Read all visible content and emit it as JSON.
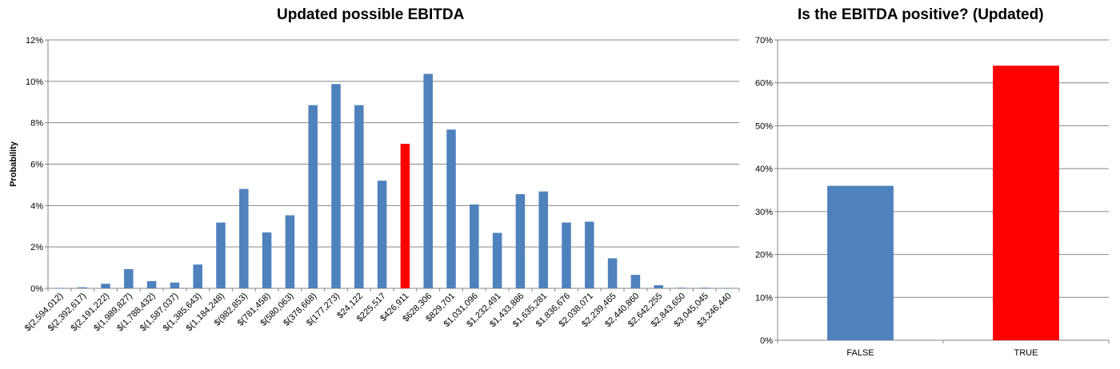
{
  "colors": {
    "bar": "#4f81bd",
    "highlight": "#ff0000",
    "grid": "#868686",
    "axis": "#868686"
  },
  "chart_data": [
    {
      "type": "bar",
      "title": "Updated possible EBITDA",
      "xlabel": "",
      "ylabel": "Probability",
      "ylim": [
        0,
        0.12
      ],
      "yticks": [
        "0%",
        "2%",
        "4%",
        "6%",
        "8%",
        "10%",
        "12%"
      ],
      "grid": true,
      "categories": [
        "$(2,594,012)",
        "$(2,392,617)",
        "$(2,191,222)",
        "$(1,989,827)",
        "$(1,788,432)",
        "$(1,587,037)",
        "$(1,385,643)",
        "$(1,184,248)",
        "$(982,853)",
        "$(781,458)",
        "$(580,063)",
        "$(378,668)",
        "$(177,273)",
        "$24,122",
        "$225,517",
        "$426,911",
        "$628,306",
        "$829,701",
        "$1,031,096",
        "$1,232,491",
        "$1,433,886",
        "$1,635,281",
        "$1,836,676",
        "$2,038,071",
        "$2,239,465",
        "$2,440,860",
        "$2,642,255",
        "$2,843,650",
        "$3,045,045",
        "$3,246,440"
      ],
      "values": [
        0.0002,
        0.0005,
        0.0022,
        0.0093,
        0.0035,
        0.0028,
        0.0115,
        0.0318,
        0.048,
        0.027,
        0.0353,
        0.0885,
        0.0987,
        0.0885,
        0.052,
        0.0698,
        0.1036,
        0.0767,
        0.0405,
        0.0268,
        0.0455,
        0.0468,
        0.0318,
        0.0322,
        0.0145,
        0.0065,
        0.0015,
        0.0003,
        0.0003,
        0.0002
      ],
      "highlight_index": 15
    },
    {
      "type": "bar",
      "title": "Is the EBITDA positive? (Updated)",
      "xlabel": "",
      "ylabel": "",
      "ylim": [
        0,
        0.7
      ],
      "yticks": [
        "0%",
        "10%",
        "20%",
        "30%",
        "40%",
        "50%",
        "60%",
        "70%"
      ],
      "grid": true,
      "categories": [
        "FALSE",
        "TRUE"
      ],
      "values": [
        0.36,
        0.64
      ],
      "highlight_index": 1
    }
  ]
}
